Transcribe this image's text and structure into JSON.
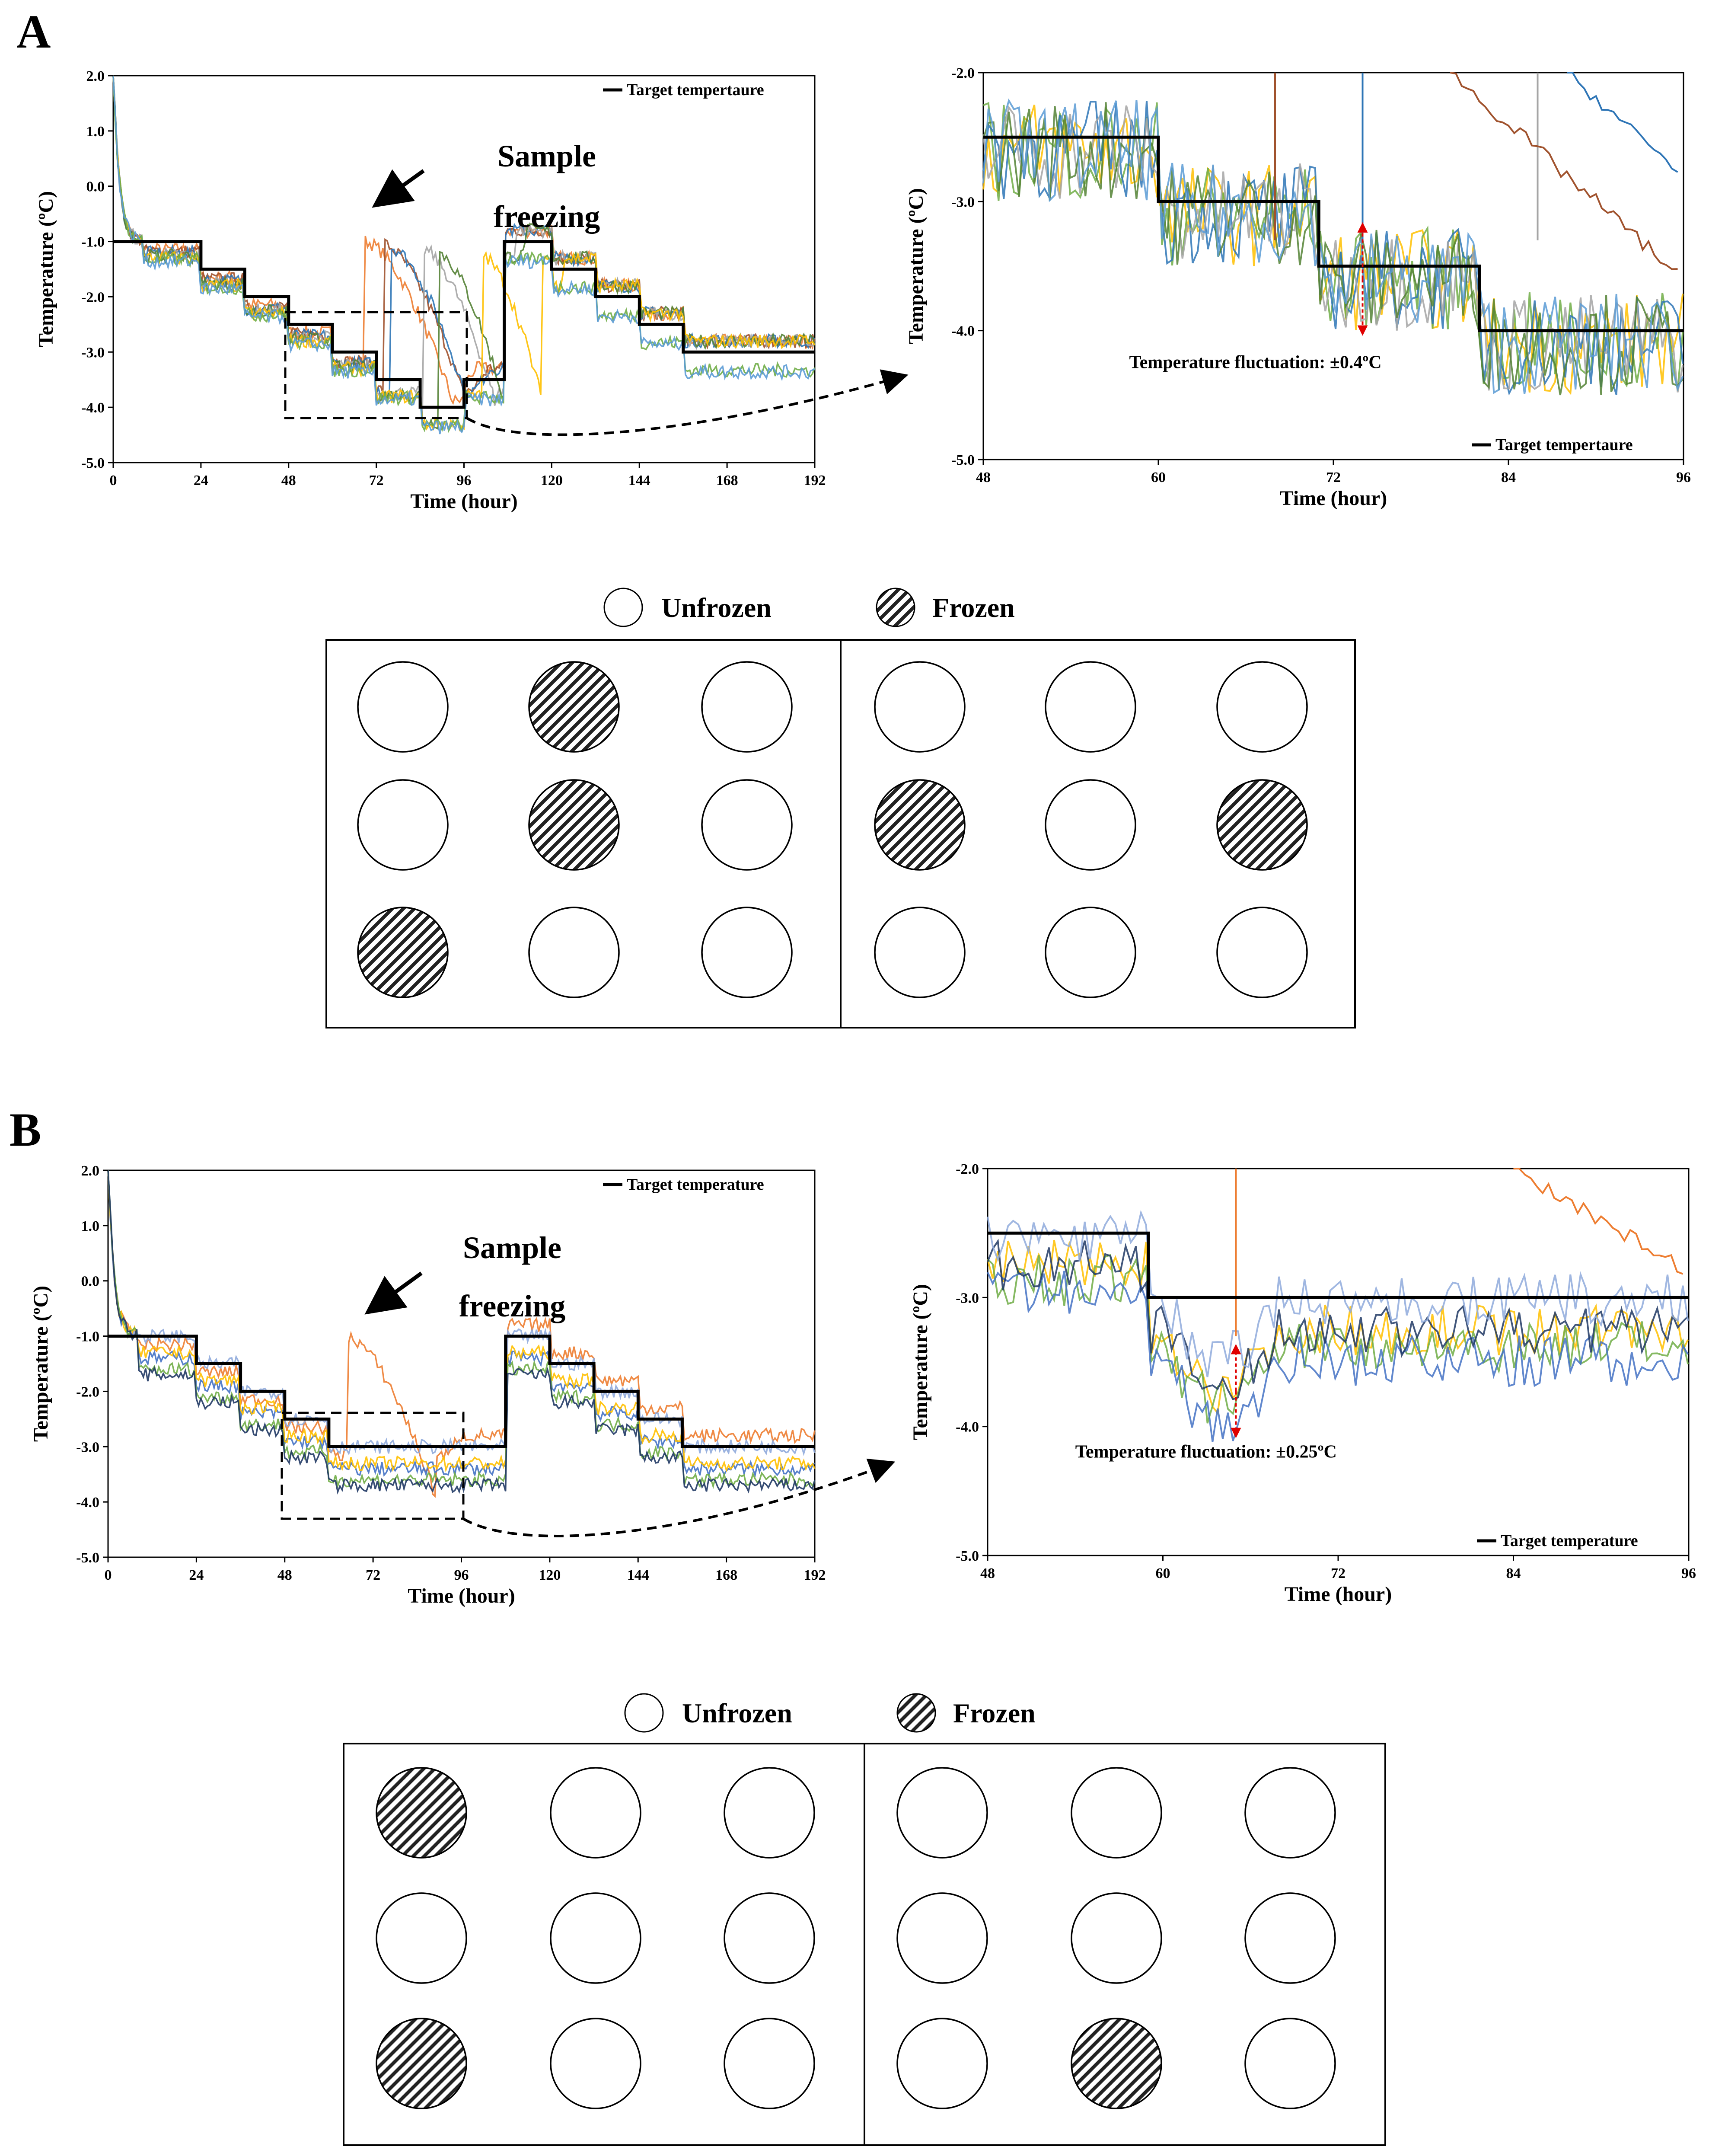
{
  "panels": [
    {
      "letter": "A",
      "main_chart": {
        "type": "line",
        "xlabel": "Time (hour)",
        "ylabel": "Temperature (ºC)",
        "xlim": [
          0,
          192
        ],
        "ylim": [
          -5.0,
          2.0
        ],
        "xticks": [
          "0",
          "24",
          "48",
          "72",
          "96",
          "120",
          "144",
          "168",
          "192"
        ],
        "yticks": [
          "2.0",
          "1.0",
          "0.0",
          "-1.0",
          "-2.0",
          "-3.0",
          "-4.0",
          "-5.0"
        ],
        "legend": "Target tempertaure",
        "annotation_line1": "Sample",
        "annotation_line2": "freezing",
        "target_series": {
          "x": [
            0,
            24,
            24,
            36,
            36,
            48,
            48,
            60,
            60,
            72,
            72,
            84,
            84,
            96,
            96,
            107,
            107,
            120,
            120,
            132,
            132,
            144,
            144,
            156,
            156,
            168,
            168,
            192
          ],
          "y": [
            -1.0,
            -1.0,
            -1.5,
            -1.5,
            -2.0,
            -2.0,
            -2.5,
            -2.5,
            -3.0,
            -3.0,
            -3.5,
            -3.5,
            -4.0,
            -4.0,
            -3.5,
            -3.5,
            -1.0,
            -1.0,
            -1.5,
            -1.5,
            -2.0,
            -2.0,
            -2.5,
            -2.5,
            -3.0,
            -3.0,
            -3.0,
            -3.0
          ]
        },
        "sample_series": [
          {
            "name": "orange",
            "color": "#ed7d31",
            "freeze_x": 69
          },
          {
            "name": "brown",
            "color": "#a0522d",
            "freeze_x": 74
          },
          {
            "name": "blue",
            "color": "#2e75b6",
            "freeze_x": 76
          },
          {
            "name": "gray",
            "color": "#a5a5a5",
            "freeze_x": 85
          },
          {
            "name": "green",
            "color": "#548235",
            "freeze_x": 89
          },
          {
            "name": "yellow",
            "color": "#ffc000",
            "freeze_x": 101
          },
          {
            "name": "lightgreen",
            "color": "#70ad47",
            "freeze_x": null
          },
          {
            "name": "steelblue",
            "color": "#5b9bd5",
            "freeze_x": null
          }
        ]
      },
      "zoom_chart": {
        "type": "line",
        "xlabel": "Time (hour)",
        "ylabel": "Temperature (ºC)",
        "xlim": [
          48,
          96
        ],
        "ylim": [
          -5.0,
          -2.0
        ],
        "xticks": [
          "48",
          "60",
          "72",
          "84",
          "96"
        ],
        "yticks": [
          "-2.0",
          "-3.0",
          "-4.0",
          "-5.0"
        ],
        "legend": "Target tempertaure",
        "fluctuation": "Temperature fluctuation: ±0.4ºC",
        "target_series": {
          "x": [
            48,
            60,
            60,
            71,
            71,
            82,
            82,
            96
          ],
          "y": [
            -2.5,
            -2.5,
            -3.0,
            -3.0,
            -3.5,
            -3.5,
            -4.0,
            -4.0
          ]
        }
      },
      "key": {
        "unfrozen": "Unfrozen",
        "frozen": "Frozen"
      },
      "plate_left": [
        [
          false,
          true,
          false
        ],
        [
          false,
          true,
          false
        ],
        [
          true,
          false,
          false
        ]
      ],
      "plate_right": [
        [
          false,
          false,
          false
        ],
        [
          true,
          false,
          true
        ],
        [
          false,
          false,
          false
        ]
      ]
    },
    {
      "letter": "B",
      "main_chart": {
        "type": "line",
        "xlabel": "Time (hour)",
        "ylabel": "Temperature (ºC)",
        "xlim": [
          0,
          192
        ],
        "ylim": [
          -5.0,
          2.0
        ],
        "xticks": [
          "0",
          "24",
          "48",
          "72",
          "96",
          "120",
          "144",
          "168",
          "192"
        ],
        "yticks": [
          "2.0",
          "1.0",
          "0.0",
          "-1.0",
          "-2.0",
          "-3.0",
          "-4.0",
          "-5.0"
        ],
        "legend": "Target temperature",
        "annotation_line1": "Sample",
        "annotation_line2": "freezing",
        "target_series": {
          "x": [
            0,
            24,
            24,
            36,
            36,
            48,
            48,
            60,
            60,
            72,
            72,
            96,
            96,
            108,
            108,
            120,
            120,
            132,
            132,
            144,
            144,
            156,
            156,
            168,
            168,
            192
          ],
          "y": [
            -1.0,
            -1.0,
            -1.5,
            -1.5,
            -2.0,
            -2.0,
            -2.5,
            -2.5,
            -3.0,
            -3.0,
            -3.0,
            -3.0,
            -3.0,
            -3.0,
            -1.0,
            -1.0,
            -1.5,
            -1.5,
            -2.0,
            -2.0,
            -2.5,
            -2.5,
            -3.0,
            -3.0,
            -3.0,
            -3.0
          ]
        },
        "sample_series": [
          {
            "name": "orange",
            "color": "#ed7d31",
            "freeze_x": 65
          },
          {
            "name": "lightblue",
            "color": "#8faadc",
            "freeze_x": null
          },
          {
            "name": "blue",
            "color": "#4472c4",
            "freeze_x": null
          },
          {
            "name": "yellow",
            "color": "#ffc000",
            "freeze_x": null
          },
          {
            "name": "green",
            "color": "#70ad47",
            "freeze_x": null
          },
          {
            "name": "darkblue",
            "color": "#203864",
            "freeze_x": null
          }
        ]
      },
      "zoom_chart": {
        "type": "line",
        "xlabel": "Time (hour)",
        "ylabel": "Temperature (ºC)",
        "xlim": [
          48,
          96
        ],
        "ylim": [
          -5.0,
          -2.0
        ],
        "xticks": [
          "48",
          "60",
          "72",
          "84",
          "96"
        ],
        "yticks": [
          "-2.0",
          "-3.0",
          "-4.0",
          "-5.0"
        ],
        "legend": "Target temperature",
        "fluctuation": "Temperature fluctuation: ±0.25ºC",
        "target_series": {
          "x": [
            48,
            59,
            59,
            96
          ],
          "y": [
            -2.5,
            -2.5,
            -3.0,
            -3.0
          ]
        }
      },
      "key": {
        "unfrozen": "Unfrozen",
        "frozen": "Frozen"
      },
      "plate_left": [
        [
          true,
          false,
          false
        ],
        [
          false,
          false,
          false
        ],
        [
          true,
          false,
          false
        ]
      ],
      "plate_right": [
        [
          false,
          false,
          false
        ],
        [
          false,
          false,
          false
        ],
        [
          false,
          true,
          false
        ]
      ]
    }
  ]
}
